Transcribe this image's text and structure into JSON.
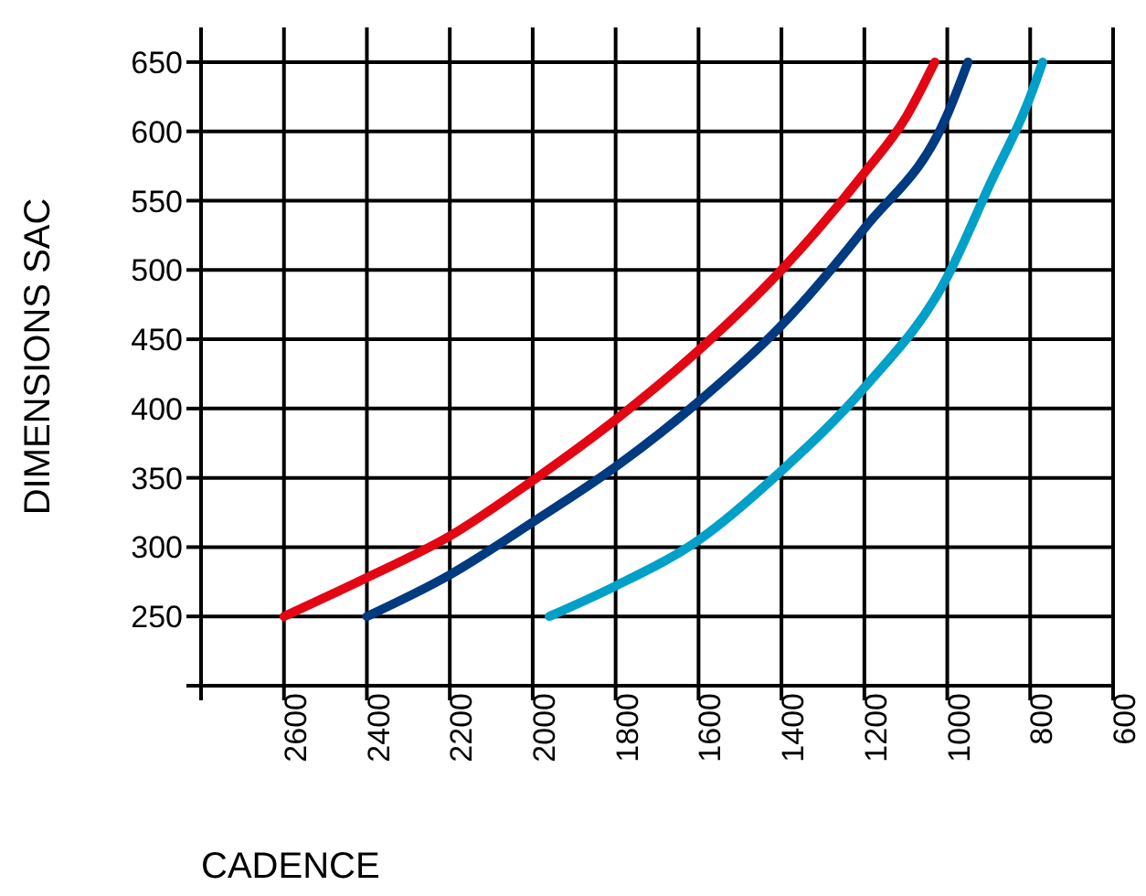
{
  "chart_data": {
    "type": "line",
    "xlabel": "CADENCE",
    "ylabel": "DIMENSIONS SAC",
    "xlim": [
      2800,
      600
    ],
    "xticks": [
      {
        "value": 2800,
        "label": null
      },
      2600,
      2400,
      2200,
      2000,
      1800,
      1600,
      1400,
      1200,
      1000,
      800,
      600
    ],
    "ylim": [
      200,
      675
    ],
    "yticks": [
      {
        "value": 200,
        "label": null
      },
      250,
      300,
      350,
      400,
      450,
      500,
      550,
      600,
      650
    ],
    "grid": true,
    "legend": false,
    "marker": "none",
    "line_style": "solid",
    "series": [
      {
        "color": "#e30613",
        "x": [
          2600,
          2400,
          2200,
          2000,
          1800,
          1600,
          1400,
          1200,
          1100,
          1030
        ],
        "values": [
          250,
          278,
          308,
          348,
          392,
          442,
          500,
          570,
          610,
          650
        ]
      },
      {
        "color": "#003a80",
        "x": [
          2400,
          2200,
          2000,
          1800,
          1600,
          1400,
          1200,
          1000,
          950
        ],
        "values": [
          250,
          280,
          318,
          358,
          405,
          460,
          530,
          612,
          650
        ]
      },
      {
        "color": "#00a0c8",
        "x": [
          1960,
          1800,
          1600,
          1400,
          1200,
          1000,
          900,
          800,
          770
        ],
        "values": [
          250,
          272,
          305,
          355,
          415,
          495,
          560,
          625,
          650
        ]
      }
    ]
  }
}
